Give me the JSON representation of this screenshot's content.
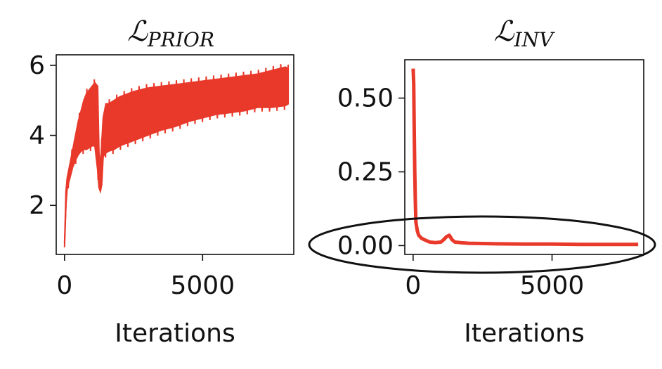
{
  "figure": {
    "accent_color": "#e8392a",
    "annotation": "black ellipse highlighting near-zero values of the right plot"
  },
  "chart_data": [
    {
      "type": "line",
      "title_main": "ℒ",
      "title_sub": "PRIOR",
      "xlabel": "Iterations",
      "ylabel": "",
      "xlim": [
        -300,
        8300
      ],
      "ylim": [
        0.6,
        6.3
      ],
      "xticks": [
        0,
        5000
      ],
      "yticks": [
        2,
        4,
        6
      ],
      "ytick_labels": [
        "2",
        "4",
        "6"
      ],
      "grid": false,
      "color": "#e8392a",
      "series": [
        {
          "x": [
            0,
            50,
            100,
            200,
            300,
            400,
            500,
            600,
            700,
            800,
            900,
            1000,
            1100,
            1200,
            1250,
            1300,
            1350,
            1400,
            1500,
            1600,
            1800,
            2000,
            2500,
            3000,
            3500,
            4000,
            4500,
            5000,
            5500,
            6000,
            6500,
            7000,
            7500,
            8000,
            8100
          ],
          "y_low": [
            0.8,
            2.0,
            2.5,
            2.8,
            3.1,
            3.3,
            3.45,
            3.55,
            3.6,
            3.6,
            3.65,
            3.7,
            3.7,
            3.0,
            2.5,
            2.4,
            2.6,
            3.4,
            3.5,
            3.55,
            3.6,
            3.7,
            3.85,
            4.0,
            4.15,
            4.25,
            4.4,
            4.5,
            4.6,
            4.65,
            4.7,
            4.8,
            4.8,
            4.85,
            4.9
          ],
          "y_high": [
            0.8,
            2.4,
            2.8,
            3.2,
            3.6,
            4.0,
            4.4,
            4.7,
            5.0,
            5.2,
            5.3,
            5.4,
            5.5,
            5.4,
            3.5,
            3.1,
            3.8,
            4.5,
            4.9,
            4.9,
            5.0,
            5.1,
            5.25,
            5.35,
            5.4,
            5.45,
            5.5,
            5.55,
            5.6,
            5.65,
            5.7,
            5.75,
            5.85,
            5.95,
            5.9
          ]
        }
      ]
    },
    {
      "type": "line",
      "title_main": "ℒ",
      "title_sub": "INV",
      "xlabel": "Iterations",
      "ylabel": "",
      "xlim": [
        -300,
        8300
      ],
      "ylim": [
        -0.03,
        0.63
      ],
      "xticks": [
        0,
        5000
      ],
      "yticks": [
        0.0,
        0.25,
        0.5
      ],
      "ytick_labels": [
        "0.00",
        "0.25",
        "0.50"
      ],
      "grid": false,
      "color": "#e8392a",
      "series": [
        {
          "x": [
            0,
            20,
            40,
            60,
            80,
            100,
            150,
            200,
            300,
            400,
            600,
            800,
            1000,
            1100,
            1200,
            1300,
            1400,
            1500,
            1700,
            2000,
            3000,
            4000,
            5000,
            6000,
            7000,
            8000,
            8100
          ],
          "y": [
            0.6,
            0.55,
            0.4,
            0.25,
            0.15,
            0.08,
            0.05,
            0.035,
            0.025,
            0.02,
            0.012,
            0.01,
            0.012,
            0.02,
            0.03,
            0.035,
            0.02,
            0.012,
            0.01,
            0.008,
            0.006,
            0.005,
            0.005,
            0.004,
            0.004,
            0.004,
            0.004
          ]
        }
      ]
    }
  ]
}
